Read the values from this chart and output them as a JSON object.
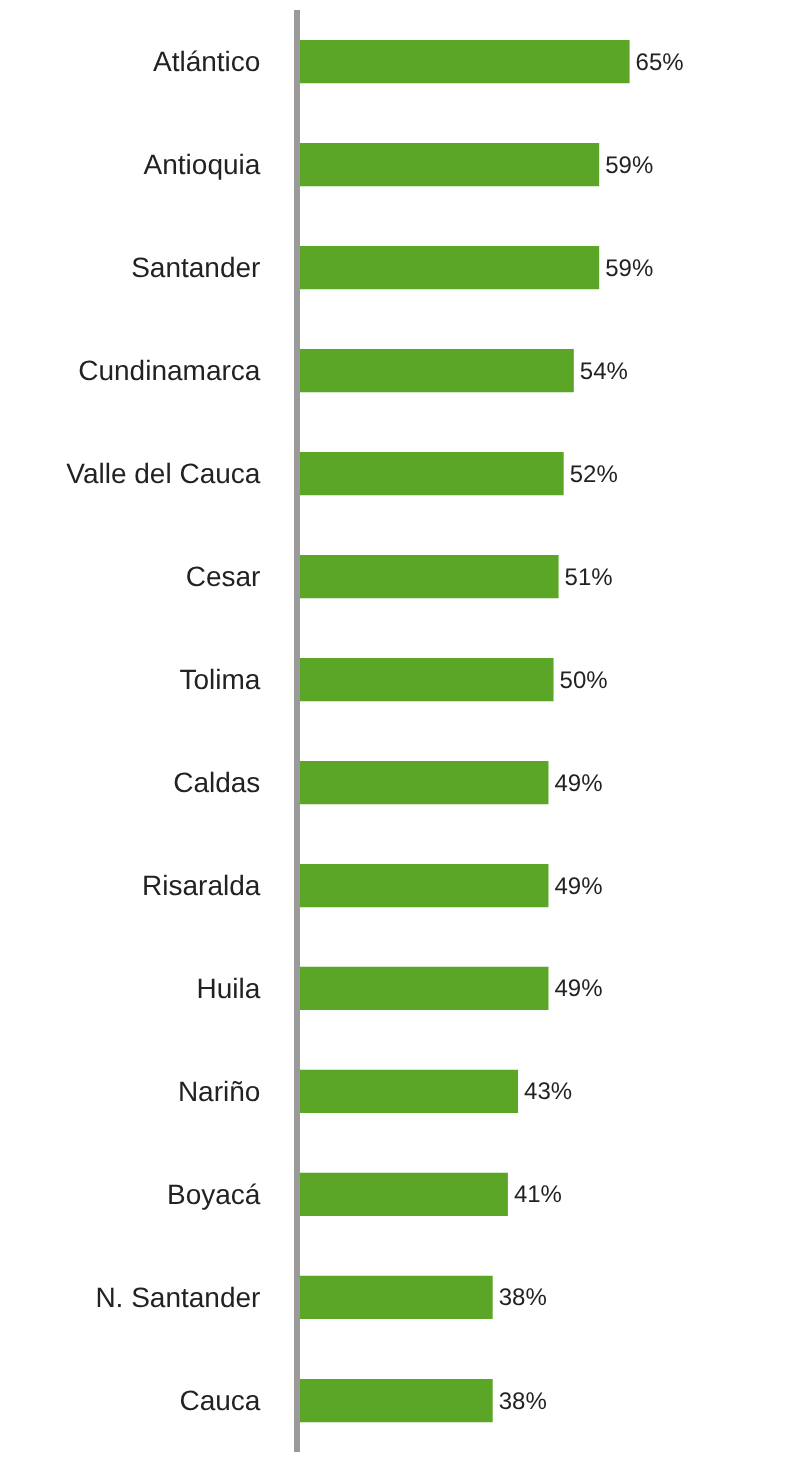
{
  "chart_data": {
    "type": "bar",
    "orientation": "horizontal",
    "categories": [
      "Atlántico",
      "Antioquia",
      "Santander",
      "Cundinamarca",
      "Valle del Cauca",
      "Cesar",
      "Tolima",
      "Caldas",
      "Risaralda",
      "Huila",
      "Nariño",
      "Boyacá",
      "N. Santander",
      "Cauca"
    ],
    "values": [
      65,
      59,
      59,
      54,
      52,
      51,
      50,
      49,
      49,
      49,
      43,
      41,
      38,
      38
    ],
    "value_labels": [
      "65%",
      "59%",
      "59%",
      "54%",
      "52%",
      "51%",
      "50%",
      "49%",
      "49%",
      "49%",
      "43%",
      "41%",
      "38%",
      "38%"
    ],
    "color": "#5ba626"
  }
}
